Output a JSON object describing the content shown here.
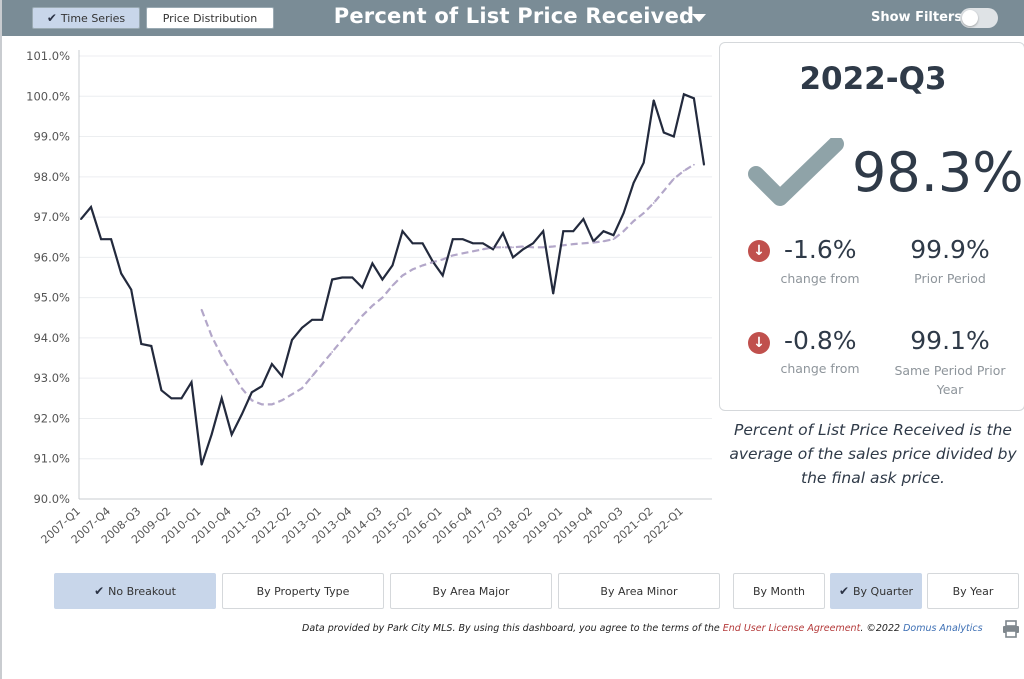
{
  "header": {
    "time_series_label": "Time Series",
    "price_distribution_label": "Price Distribution",
    "title": "Percent of List Price Received",
    "show_filters_label": "Show Filters:"
  },
  "summary": {
    "period": "2022-Q3",
    "value": "98.3%",
    "change1": "-1.6%",
    "change1_sub": "change from",
    "prior1_value": "99.9%",
    "prior1_label": "Prior Period",
    "change2": "-0.8%",
    "change2_sub": "change from",
    "prior2_value": "99.1%",
    "prior2_label_line1": "Same Period Prior",
    "prior2_label_line2": "Year"
  },
  "description": "Percent of List Price Received is the average of the sales price divided by the final ask price.",
  "breakouts": {
    "no_breakout": "No Breakout",
    "by_property_type": "By Property Type",
    "by_area_major": "By Area Major",
    "by_area_minor": "By Area Minor",
    "by_month": "By Month",
    "by_quarter": "By Quarter",
    "by_year": "By Year"
  },
  "footer": {
    "text_before": "Data provided by Park City MLS.  By using this dashboard, you agree to the terms of the ",
    "license": "End User License Agreement",
    "text_middle": ".  ©2022 ",
    "brand": "Domus Analytics"
  },
  "colors": {
    "primary_line": "#232a3d",
    "trend_line": "#b3a7c9",
    "check_icon": "#8fa3a8",
    "down_icon": "#c0504d",
    "header_bg": "#7a8c96",
    "active_button": "#c8d6ea"
  },
  "icons": {
    "check": "check-icon",
    "down": "arrow-down-circle-icon",
    "print": "printer-icon",
    "caret": "caret-down-icon"
  },
  "chart_data": {
    "type": "line",
    "ylim": [
      90.0,
      101.0
    ],
    "yticks": [
      90.0,
      91.0,
      92.0,
      93.0,
      94.0,
      95.0,
      96.0,
      97.0,
      98.0,
      99.0,
      100.0,
      101.0
    ],
    "ytick_labels": [
      "90.0%",
      "91.0%",
      "92.0%",
      "93.0%",
      "94.0%",
      "95.0%",
      "96.0%",
      "97.0%",
      "98.0%",
      "99.0%",
      "100.0%",
      "101.0%"
    ],
    "x_start_label": "2007-Q1",
    "xtick_labels": [
      "2007-Q1",
      "2007-Q4",
      "2008-Q3",
      "2009-Q2",
      "2010-Q1",
      "2010-Q4",
      "2011-Q3",
      "2012-Q2",
      "2013-Q1",
      "2013-Q4",
      "2014-Q3",
      "2015-Q2",
      "2016-Q1",
      "2016-Q4",
      "2017-Q3",
      "2018-Q2",
      "2019-Q1",
      "2019-Q4",
      "2020-Q3",
      "2021-Q2",
      "2022-Q1"
    ],
    "grid": true,
    "series": [
      {
        "values": [
          96.95,
          97.25,
          96.45,
          96.45,
          95.6,
          95.2,
          93.85,
          93.8,
          92.7,
          92.5,
          92.5,
          92.9,
          90.85,
          91.6,
          92.5,
          91.6,
          92.1,
          92.65,
          92.8,
          93.35,
          93.05,
          93.95,
          94.25,
          94.45,
          94.45,
          95.45,
          95.5,
          95.5,
          95.25,
          95.85,
          95.45,
          95.8,
          96.65,
          96.35,
          96.35,
          95.9,
          95.55,
          96.45,
          96.45,
          96.35,
          96.35,
          96.2,
          96.6,
          96.0,
          96.2,
          96.35,
          96.65,
          95.1,
          96.65,
          96.65,
          96.95,
          96.4,
          96.65,
          96.55,
          97.1,
          97.85,
          98.35,
          99.9,
          99.1,
          99.0,
          100.05,
          99.95,
          98.3
        ]
      },
      {
        "x_offset": 12,
        "values": [
          94.7,
          94.05,
          93.55,
          93.15,
          92.75,
          92.45,
          92.35,
          92.35,
          92.45,
          92.6,
          92.75,
          93.05,
          93.35,
          93.65,
          93.95,
          94.25,
          94.55,
          94.8,
          95.0,
          95.3,
          95.55,
          95.7,
          95.8,
          95.88,
          95.95,
          96.05,
          96.1,
          96.15,
          96.2,
          96.25,
          96.25,
          96.25,
          96.27,
          96.25,
          96.25,
          96.27,
          96.3,
          96.33,
          96.35,
          96.37,
          96.4,
          96.45,
          96.65,
          96.9,
          97.1,
          97.35,
          97.65,
          97.95,
          98.15,
          98.3
        ]
      }
    ]
  }
}
